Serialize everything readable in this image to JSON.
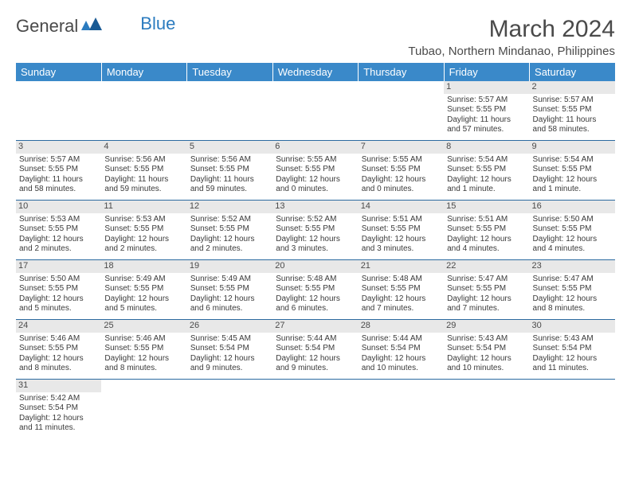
{
  "logo": {
    "general": "General",
    "blue": "Blue"
  },
  "title": "March 2024",
  "subtitle": "Tubao, Northern Mindanao, Philippines",
  "colors": {
    "header_bg": "#3a89c9",
    "header_text": "#ffffff",
    "daynum_bg": "#e8e8e8",
    "border": "#2b6aa0",
    "text": "#3a3a3a",
    "logo_blue": "#2b7bbf"
  },
  "daysOfWeek": [
    "Sunday",
    "Monday",
    "Tuesday",
    "Wednesday",
    "Thursday",
    "Friday",
    "Saturday"
  ],
  "weeks": [
    [
      null,
      null,
      null,
      null,
      null,
      {
        "n": "1",
        "sr": "Sunrise: 5:57 AM",
        "ss": "Sunset: 5:55 PM",
        "d1": "Daylight: 11 hours",
        "d2": "and 57 minutes."
      },
      {
        "n": "2",
        "sr": "Sunrise: 5:57 AM",
        "ss": "Sunset: 5:55 PM",
        "d1": "Daylight: 11 hours",
        "d2": "and 58 minutes."
      }
    ],
    [
      {
        "n": "3",
        "sr": "Sunrise: 5:57 AM",
        "ss": "Sunset: 5:55 PM",
        "d1": "Daylight: 11 hours",
        "d2": "and 58 minutes."
      },
      {
        "n": "4",
        "sr": "Sunrise: 5:56 AM",
        "ss": "Sunset: 5:55 PM",
        "d1": "Daylight: 11 hours",
        "d2": "and 59 minutes."
      },
      {
        "n": "5",
        "sr": "Sunrise: 5:56 AM",
        "ss": "Sunset: 5:55 PM",
        "d1": "Daylight: 11 hours",
        "d2": "and 59 minutes."
      },
      {
        "n": "6",
        "sr": "Sunrise: 5:55 AM",
        "ss": "Sunset: 5:55 PM",
        "d1": "Daylight: 12 hours",
        "d2": "and 0 minutes."
      },
      {
        "n": "7",
        "sr": "Sunrise: 5:55 AM",
        "ss": "Sunset: 5:55 PM",
        "d1": "Daylight: 12 hours",
        "d2": "and 0 minutes."
      },
      {
        "n": "8",
        "sr": "Sunrise: 5:54 AM",
        "ss": "Sunset: 5:55 PM",
        "d1": "Daylight: 12 hours",
        "d2": "and 1 minute."
      },
      {
        "n": "9",
        "sr": "Sunrise: 5:54 AM",
        "ss": "Sunset: 5:55 PM",
        "d1": "Daylight: 12 hours",
        "d2": "and 1 minute."
      }
    ],
    [
      {
        "n": "10",
        "sr": "Sunrise: 5:53 AM",
        "ss": "Sunset: 5:55 PM",
        "d1": "Daylight: 12 hours",
        "d2": "and 2 minutes."
      },
      {
        "n": "11",
        "sr": "Sunrise: 5:53 AM",
        "ss": "Sunset: 5:55 PM",
        "d1": "Daylight: 12 hours",
        "d2": "and 2 minutes."
      },
      {
        "n": "12",
        "sr": "Sunrise: 5:52 AM",
        "ss": "Sunset: 5:55 PM",
        "d1": "Daylight: 12 hours",
        "d2": "and 2 minutes."
      },
      {
        "n": "13",
        "sr": "Sunrise: 5:52 AM",
        "ss": "Sunset: 5:55 PM",
        "d1": "Daylight: 12 hours",
        "d2": "and 3 minutes."
      },
      {
        "n": "14",
        "sr": "Sunrise: 5:51 AM",
        "ss": "Sunset: 5:55 PM",
        "d1": "Daylight: 12 hours",
        "d2": "and 3 minutes."
      },
      {
        "n": "15",
        "sr": "Sunrise: 5:51 AM",
        "ss": "Sunset: 5:55 PM",
        "d1": "Daylight: 12 hours",
        "d2": "and 4 minutes."
      },
      {
        "n": "16",
        "sr": "Sunrise: 5:50 AM",
        "ss": "Sunset: 5:55 PM",
        "d1": "Daylight: 12 hours",
        "d2": "and 4 minutes."
      }
    ],
    [
      {
        "n": "17",
        "sr": "Sunrise: 5:50 AM",
        "ss": "Sunset: 5:55 PM",
        "d1": "Daylight: 12 hours",
        "d2": "and 5 minutes."
      },
      {
        "n": "18",
        "sr": "Sunrise: 5:49 AM",
        "ss": "Sunset: 5:55 PM",
        "d1": "Daylight: 12 hours",
        "d2": "and 5 minutes."
      },
      {
        "n": "19",
        "sr": "Sunrise: 5:49 AM",
        "ss": "Sunset: 5:55 PM",
        "d1": "Daylight: 12 hours",
        "d2": "and 6 minutes."
      },
      {
        "n": "20",
        "sr": "Sunrise: 5:48 AM",
        "ss": "Sunset: 5:55 PM",
        "d1": "Daylight: 12 hours",
        "d2": "and 6 minutes."
      },
      {
        "n": "21",
        "sr": "Sunrise: 5:48 AM",
        "ss": "Sunset: 5:55 PM",
        "d1": "Daylight: 12 hours",
        "d2": "and 7 minutes."
      },
      {
        "n": "22",
        "sr": "Sunrise: 5:47 AM",
        "ss": "Sunset: 5:55 PM",
        "d1": "Daylight: 12 hours",
        "d2": "and 7 minutes."
      },
      {
        "n": "23",
        "sr": "Sunrise: 5:47 AM",
        "ss": "Sunset: 5:55 PM",
        "d1": "Daylight: 12 hours",
        "d2": "and 8 minutes."
      }
    ],
    [
      {
        "n": "24",
        "sr": "Sunrise: 5:46 AM",
        "ss": "Sunset: 5:55 PM",
        "d1": "Daylight: 12 hours",
        "d2": "and 8 minutes."
      },
      {
        "n": "25",
        "sr": "Sunrise: 5:46 AM",
        "ss": "Sunset: 5:55 PM",
        "d1": "Daylight: 12 hours",
        "d2": "and 8 minutes."
      },
      {
        "n": "26",
        "sr": "Sunrise: 5:45 AM",
        "ss": "Sunset: 5:54 PM",
        "d1": "Daylight: 12 hours",
        "d2": "and 9 minutes."
      },
      {
        "n": "27",
        "sr": "Sunrise: 5:44 AM",
        "ss": "Sunset: 5:54 PM",
        "d1": "Daylight: 12 hours",
        "d2": "and 9 minutes."
      },
      {
        "n": "28",
        "sr": "Sunrise: 5:44 AM",
        "ss": "Sunset: 5:54 PM",
        "d1": "Daylight: 12 hours",
        "d2": "and 10 minutes."
      },
      {
        "n": "29",
        "sr": "Sunrise: 5:43 AM",
        "ss": "Sunset: 5:54 PM",
        "d1": "Daylight: 12 hours",
        "d2": "and 10 minutes."
      },
      {
        "n": "30",
        "sr": "Sunrise: 5:43 AM",
        "ss": "Sunset: 5:54 PM",
        "d1": "Daylight: 12 hours",
        "d2": "and 11 minutes."
      }
    ],
    [
      {
        "n": "31",
        "sr": "Sunrise: 5:42 AM",
        "ss": "Sunset: 5:54 PM",
        "d1": "Daylight: 12 hours",
        "d2": "and 11 minutes."
      },
      null,
      null,
      null,
      null,
      null,
      null
    ]
  ]
}
